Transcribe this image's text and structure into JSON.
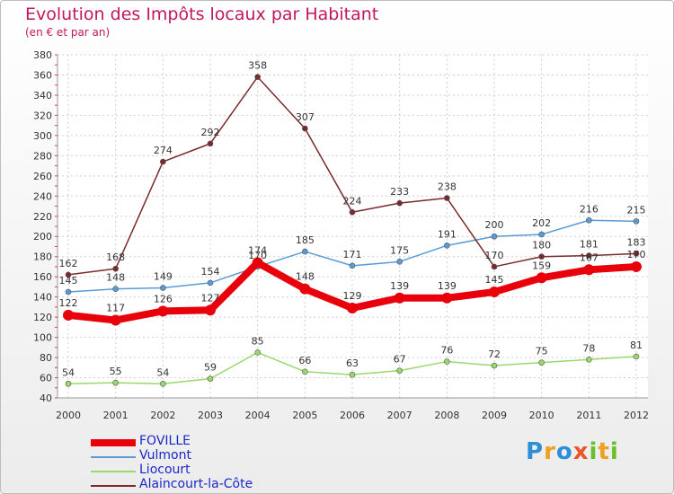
{
  "header": {
    "title": "Evolution des Impôts locaux par Habitant",
    "subtitle": "(en € et par an)"
  },
  "chart_data": {
    "type": "line",
    "title": "Evolution des Impôts locaux par Habitant",
    "subtitle": "(en € et par an)",
    "xlabel": "",
    "ylabel": "",
    "x": [
      "2000",
      "2001",
      "2002",
      "2003",
      "2004",
      "2005",
      "2006",
      "2007",
      "2008",
      "2009",
      "2010",
      "2011",
      "2012"
    ],
    "ylim": [
      40,
      380
    ],
    "yticks": [
      40,
      60,
      80,
      100,
      120,
      140,
      160,
      180,
      200,
      220,
      240,
      260,
      280,
      300,
      320,
      340,
      360,
      380
    ],
    "grid": true,
    "legend": "bottom-left",
    "series": [
      {
        "name": "FOVILLE",
        "color": "#e8000b",
        "values": [
          122,
          117,
          126,
          127,
          174,
          148,
          129,
          139,
          139,
          145,
          159,
          167,
          170
        ],
        "labels": [
          "122",
          "117",
          "126",
          "127",
          "174",
          "148",
          "129",
          "139",
          "139",
          "145",
          "159",
          "167",
          "170"
        ]
      },
      {
        "name": "Vulmont",
        "color": "#5b9bd5",
        "values": [
          145,
          148,
          149,
          154,
          170,
          185,
          171,
          175,
          191,
          200,
          202,
          216,
          215
        ],
        "labels": [
          "145",
          "148",
          "149",
          "154",
          "170",
          "185",
          "171",
          "175",
          "191",
          "200",
          "202",
          "216",
          "215"
        ]
      },
      {
        "name": "Liocourt",
        "color": "#9bd86b",
        "values": [
          54,
          55,
          54,
          59,
          85,
          66,
          63,
          67,
          76,
          72,
          75,
          78,
          81
        ],
        "labels": [
          "54",
          "55",
          "54",
          "59",
          "85",
          "66",
          "63",
          "67",
          "76",
          "72",
          "75",
          "78",
          "81"
        ]
      },
      {
        "name": "Alaincourt-la-Côte",
        "color": "#7a2a2a",
        "values": [
          162,
          168,
          274,
          292,
          358,
          307,
          224,
          233,
          238,
          170,
          180,
          181,
          183
        ],
        "labels": [
          "162",
          "168",
          "274",
          "292",
          "358",
          "307",
          "224",
          "233",
          "238",
          "170",
          "180",
          "181",
          "183"
        ]
      }
    ]
  },
  "branding": {
    "logo_letters": [
      "P",
      "r",
      "o",
      "x",
      "i",
      "t",
      "i"
    ],
    "logo_colors": [
      "#2e8fd8",
      "#f0a020",
      "#2e8fd8",
      "#e8562a",
      "#6bbf2a",
      "#f0a020",
      "#6bbf2a"
    ]
  }
}
